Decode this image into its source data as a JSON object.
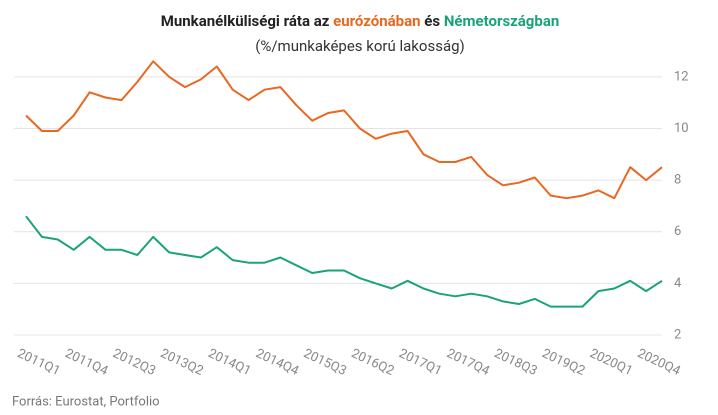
{
  "chart_data": {
    "type": "line",
    "title_parts": [
      "Munkanélküliségi ráta az",
      "és"
    ],
    "subtitle": "(%/munkaképes korú lakosság)",
    "source": "Forrás: Eurostat, Portfolio",
    "categories": [
      "2011Q1",
      null,
      null,
      "2011Q4",
      null,
      null,
      "2012Q3",
      null,
      null,
      "2013Q2",
      null,
      null,
      "2014Q1",
      null,
      null,
      "2014Q4",
      null,
      null,
      "2015Q3",
      null,
      null,
      "2016Q2",
      null,
      null,
      "2017Q1",
      null,
      null,
      "2017Q4",
      null,
      null,
      "2018Q3",
      null,
      null,
      "2019Q2",
      null,
      null,
      "2020Q1",
      null,
      null,
      "2020Q4",
      null
    ],
    "series": [
      {
        "name": "eurózónában",
        "color": "#e8681f",
        "values": [
          10.5,
          9.9,
          9.9,
          10.5,
          11.4,
          11.2,
          11.1,
          11.8,
          12.6,
          12.0,
          11.6,
          11.9,
          12.4,
          11.5,
          11.1,
          11.5,
          11.6,
          10.9,
          10.3,
          10.6,
          10.7,
          10.0,
          9.6,
          9.8,
          9.9,
          9.0,
          8.7,
          8.7,
          8.9,
          8.2,
          7.8,
          7.9,
          8.1,
          7.4,
          7.3,
          7.4,
          7.6,
          7.3,
          8.5,
          8.0,
          8.5
        ]
      },
      {
        "name": "Németországban",
        "color": "#1aa37a",
        "values": [
          6.6,
          5.8,
          5.7,
          5.3,
          5.8,
          5.3,
          5.3,
          5.1,
          5.8,
          5.2,
          5.1,
          5.0,
          5.4,
          4.9,
          4.8,
          4.8,
          5.0,
          4.7,
          4.4,
          4.5,
          4.5,
          4.2,
          4.0,
          3.8,
          4.1,
          3.8,
          3.6,
          3.5,
          3.6,
          3.5,
          3.3,
          3.2,
          3.4,
          3.1,
          3.1,
          3.1,
          3.7,
          3.8,
          4.1,
          3.7,
          4.1
        ]
      }
    ],
    "ylim": [
      2,
      13
    ],
    "yticks": [
      2,
      4,
      6,
      8,
      10,
      12
    ],
    "grid": true
  }
}
